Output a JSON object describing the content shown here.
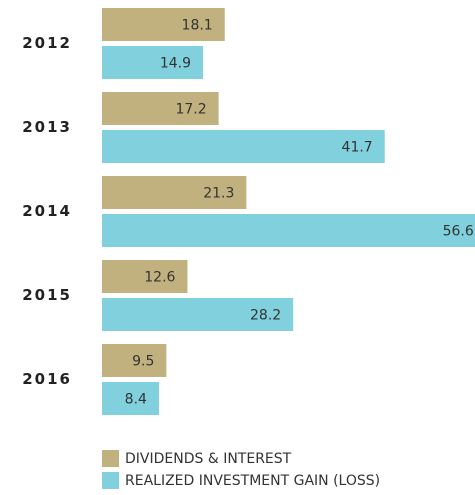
{
  "chart_data": {
    "type": "hbar",
    "categories": [
      "2012",
      "2013",
      "2014",
      "2015",
      "2016"
    ],
    "series": [
      {
        "name": "DIVIDENDS & INTEREST",
        "color": "#c1b17f",
        "values": [
          18.1,
          17.2,
          21.3,
          12.6,
          9.5
        ]
      },
      {
        "name": "REALIZED INVESTMENT GAIN (LOSS)",
        "color": "#80d0dd",
        "values": [
          14.9,
          41.7,
          56.6,
          28.2,
          8.4
        ]
      }
    ]
  }
}
